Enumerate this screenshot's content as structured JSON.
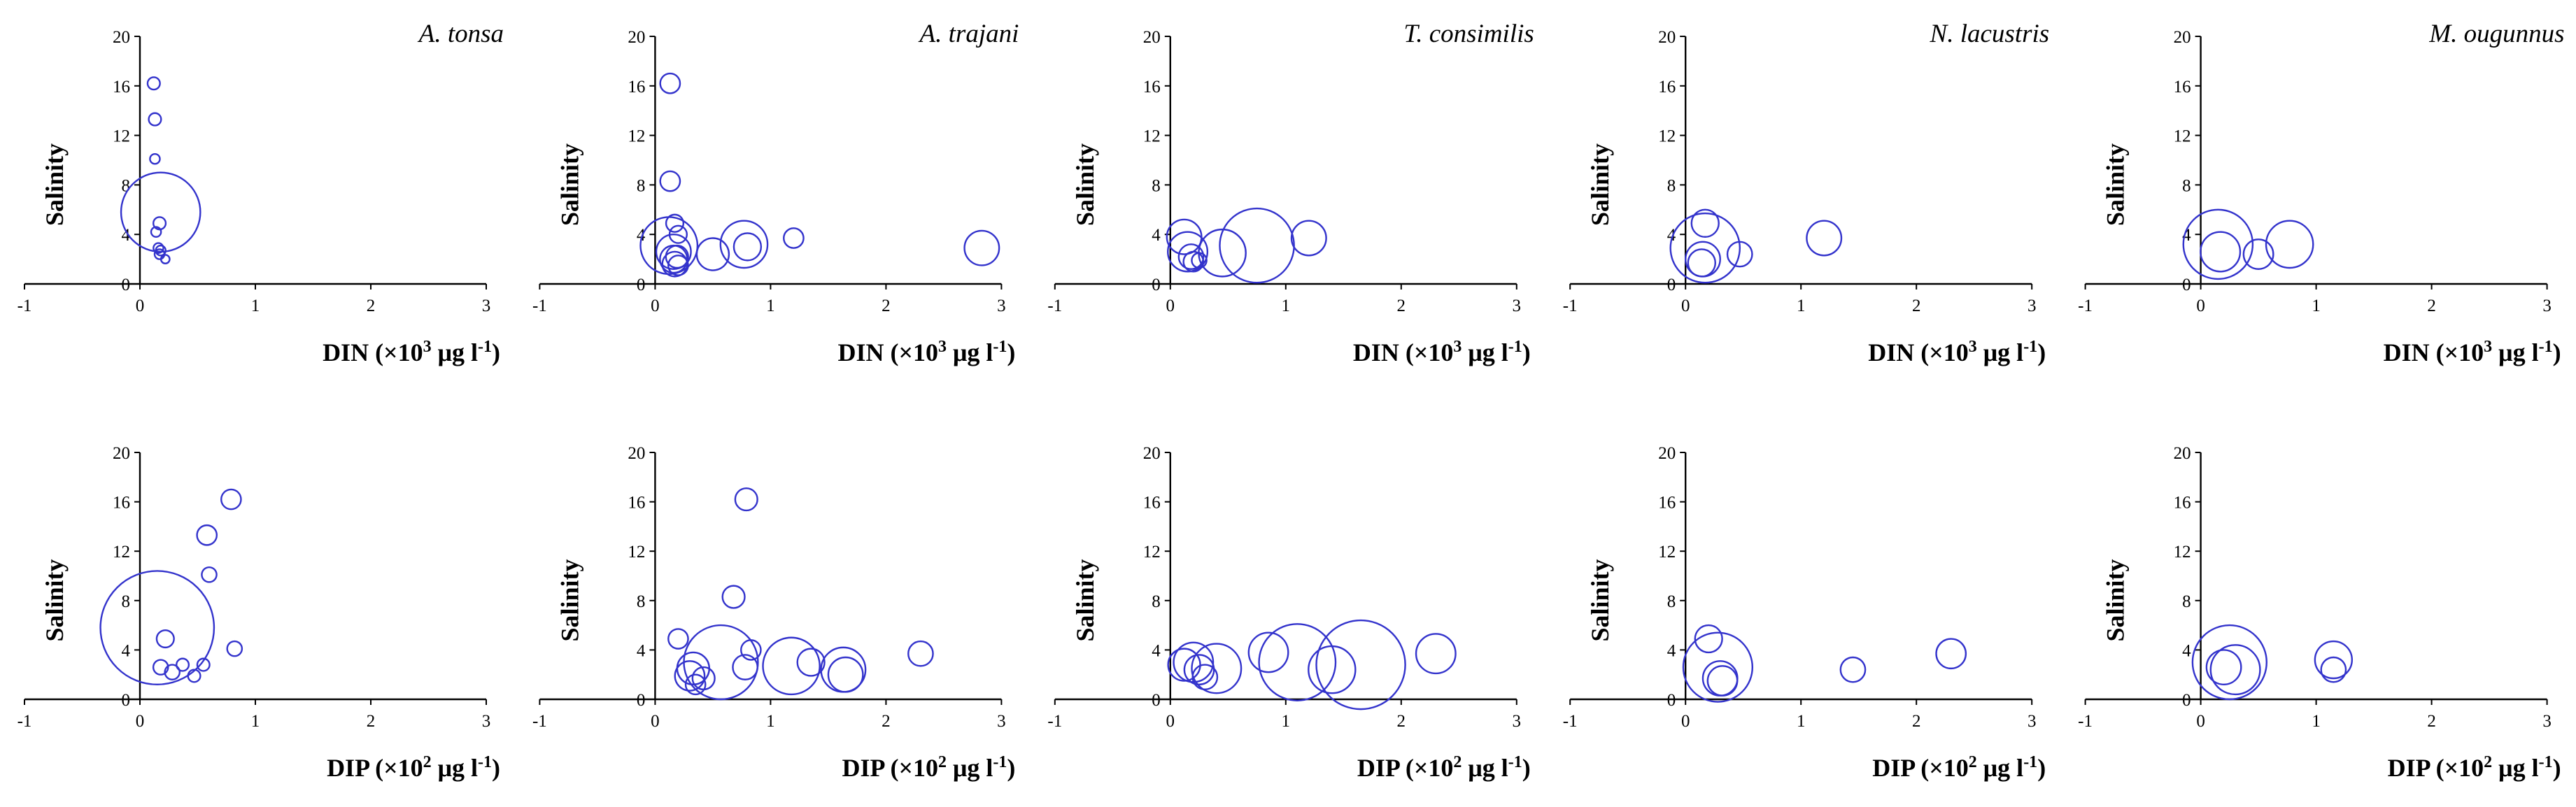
{
  "figure": {
    "marker_color": "#3333cc",
    "axis_color": "#000000"
  },
  "chart_data": [
    {
      "type": "scatter",
      "species": "A. tonsa",
      "xlabel": {
        "main": "DIN (×10",
        "sup": "3",
        "mid": " μg l",
        "sup2": "-1",
        "end": ")"
      },
      "ylabel": "Salinity",
      "xlim": [
        -1,
        3
      ],
      "ylim": [
        0,
        20
      ],
      "xticks": [
        "-1",
        "0",
        "1",
        "2",
        "3"
      ],
      "yticks": [
        "0",
        "4",
        "8",
        "12",
        "16",
        "20"
      ],
      "points": [
        {
          "x": 0.12,
          "y": 16.2,
          "r": 0.5
        },
        {
          "x": 0.13,
          "y": 13.3,
          "r": 0.5
        },
        {
          "x": 0.13,
          "y": 10.1,
          "r": 0.4
        },
        {
          "x": 0.17,
          "y": 4.9,
          "r": 0.5
        },
        {
          "x": 0.14,
          "y": 4.2,
          "r": 0.4
        },
        {
          "x": 0.18,
          "y": 5.8,
          "r": 3.2
        },
        {
          "x": 0.16,
          "y": 2.9,
          "r": 0.4
        },
        {
          "x": 0.18,
          "y": 2.7,
          "r": 0.4
        },
        {
          "x": 0.17,
          "y": 2.4,
          "r": 0.4
        },
        {
          "x": 0.22,
          "y": 2.0,
          "r": 0.35
        }
      ]
    },
    {
      "type": "scatter",
      "species": "A. trajani",
      "xlabel": {
        "main": "DIN (×10",
        "sup": "3",
        "mid": " μg l",
        "sup2": "-1",
        "end": ")"
      },
      "ylabel": "Salinity",
      "xlim": [
        -1,
        3
      ],
      "ylim": [
        0,
        20
      ],
      "xticks": [
        "-1",
        "0",
        "1",
        "2",
        "3"
      ],
      "yticks": [
        "0",
        "4",
        "8",
        "12",
        "16",
        "20"
      ],
      "points": [
        {
          "x": 0.13,
          "y": 16.2,
          "r": 0.8
        },
        {
          "x": 0.13,
          "y": 8.3,
          "r": 0.8
        },
        {
          "x": 0.17,
          "y": 4.9,
          "r": 0.7
        },
        {
          "x": 0.2,
          "y": 4.0,
          "r": 0.7
        },
        {
          "x": 0.12,
          "y": 3.1,
          "r": 2.3
        },
        {
          "x": 0.16,
          "y": 2.6,
          "r": 1.4
        },
        {
          "x": 0.16,
          "y": 2.0,
          "r": 1.1
        },
        {
          "x": 0.17,
          "y": 1.6,
          "r": 1.0
        },
        {
          "x": 0.19,
          "y": 2.2,
          "r": 0.9
        },
        {
          "x": 0.2,
          "y": 1.5,
          "r": 0.8
        },
        {
          "x": 0.5,
          "y": 2.4,
          "r": 1.3
        },
        {
          "x": 0.77,
          "y": 3.2,
          "r": 1.9
        },
        {
          "x": 0.8,
          "y": 3.0,
          "r": 1.1
        },
        {
          "x": 1.2,
          "y": 3.7,
          "r": 0.8
        },
        {
          "x": 2.83,
          "y": 2.9,
          "r": 1.4
        }
      ]
    },
    {
      "type": "scatter",
      "species": "T. consimilis",
      "xlabel": {
        "main": "DIN (×10",
        "sup": "3",
        "mid": " μg l",
        "sup2": "-1",
        "end": ")"
      },
      "ylabel": "Salinity",
      "xlim": [
        -1,
        3
      ],
      "ylim": [
        0,
        20
      ],
      "xticks": [
        "-1",
        "0",
        "1",
        "2",
        "3"
      ],
      "yticks": [
        "0",
        "4",
        "8",
        "12",
        "16",
        "20"
      ],
      "points": [
        {
          "x": 0.12,
          "y": 3.8,
          "r": 1.4
        },
        {
          "x": 0.15,
          "y": 2.6,
          "r": 1.6
        },
        {
          "x": 0.18,
          "y": 2.2,
          "r": 1.0
        },
        {
          "x": 0.2,
          "y": 1.8,
          "r": 0.8
        },
        {
          "x": 0.25,
          "y": 1.9,
          "r": 0.6
        },
        {
          "x": 0.45,
          "y": 2.5,
          "r": 1.9
        },
        {
          "x": 0.75,
          "y": 3.1,
          "r": 3.0
        },
        {
          "x": 1.2,
          "y": 3.7,
          "r": 1.4
        }
      ]
    },
    {
      "type": "scatter",
      "species": "N. lacustris",
      "xlabel": {
        "main": "DIN (×10",
        "sup": "3",
        "mid": " μg l",
        "sup2": "-1",
        "end": ")"
      },
      "ylabel": "Salinity",
      "xlim": [
        -1,
        3
      ],
      "ylim": [
        0,
        20
      ],
      "xticks": [
        "-1",
        "0",
        "1",
        "2",
        "3"
      ],
      "yticks": [
        "0",
        "4",
        "8",
        "12",
        "16",
        "20"
      ],
      "points": [
        {
          "x": 0.17,
          "y": 4.9,
          "r": 1.1
        },
        {
          "x": 0.17,
          "y": 2.9,
          "r": 2.8
        },
        {
          "x": 0.15,
          "y": 2.0,
          "r": 1.4
        },
        {
          "x": 0.14,
          "y": 1.7,
          "r": 1.1
        },
        {
          "x": 0.47,
          "y": 2.4,
          "r": 1.0
        },
        {
          "x": 1.2,
          "y": 3.7,
          "r": 1.4
        }
      ]
    },
    {
      "type": "scatter",
      "species": "M. ougunnus",
      "xlabel": {
        "main": "DIN (×10",
        "sup": "3",
        "mid": " μg l",
        "sup2": "-1",
        "end": ")"
      },
      "ylabel": "Salinity",
      "xlim": [
        -1,
        3
      ],
      "ylim": [
        0,
        20
      ],
      "xticks": [
        "-1",
        "0",
        "1",
        "2",
        "3"
      ],
      "yticks": [
        "0",
        "4",
        "8",
        "12",
        "16",
        "20"
      ],
      "points": [
        {
          "x": 0.15,
          "y": 3.2,
          "r": 2.8
        },
        {
          "x": 0.17,
          "y": 2.6,
          "r": 1.6
        },
        {
          "x": 0.5,
          "y": 2.4,
          "r": 1.2
        },
        {
          "x": 0.77,
          "y": 3.2,
          "r": 1.9
        }
      ]
    },
    {
      "type": "scatter",
      "species": "",
      "xlabel": {
        "main": "DIP (×10",
        "sup": "2",
        "mid": " μg l",
        "sup2": "-1",
        "end": ")"
      },
      "ylabel": "Salinity",
      "xlim": [
        -1,
        3
      ],
      "ylim": [
        0,
        20
      ],
      "xticks": [
        "-1",
        "0",
        "1",
        "2",
        "3"
      ],
      "yticks": [
        "0",
        "4",
        "8",
        "12",
        "16",
        "20"
      ],
      "points": [
        {
          "x": 0.79,
          "y": 16.2,
          "r": 0.8
        },
        {
          "x": 0.58,
          "y": 13.3,
          "r": 0.8
        },
        {
          "x": 0.6,
          "y": 10.1,
          "r": 0.6
        },
        {
          "x": 0.82,
          "y": 4.1,
          "r": 0.6
        },
        {
          "x": 0.22,
          "y": 4.9,
          "r": 0.7
        },
        {
          "x": 0.15,
          "y": 5.8,
          "r": 4.6
        },
        {
          "x": 0.18,
          "y": 2.6,
          "r": 0.6
        },
        {
          "x": 0.28,
          "y": 2.2,
          "r": 0.6
        },
        {
          "x": 0.37,
          "y": 2.8,
          "r": 0.5
        },
        {
          "x": 0.47,
          "y": 1.9,
          "r": 0.5
        },
        {
          "x": 0.55,
          "y": 2.8,
          "r": 0.5
        }
      ]
    },
    {
      "type": "scatter",
      "species": "",
      "xlabel": {
        "main": "DIP (×10",
        "sup": "2",
        "mid": " μg l",
        "sup2": "-1",
        "end": ")"
      },
      "ylabel": "Salinity",
      "xlim": [
        -1,
        3
      ],
      "ylim": [
        0,
        20
      ],
      "xticks": [
        "-1",
        "0",
        "1",
        "2",
        "3"
      ],
      "yticks": [
        "0",
        "4",
        "8",
        "12",
        "16",
        "20"
      ],
      "points": [
        {
          "x": 0.79,
          "y": 16.2,
          "r": 0.9
        },
        {
          "x": 0.68,
          "y": 8.3,
          "r": 0.9
        },
        {
          "x": 0.2,
          "y": 4.9,
          "r": 0.8
        },
        {
          "x": 0.83,
          "y": 4.0,
          "r": 0.8
        },
        {
          "x": 0.33,
          "y": 2.5,
          "r": 1.3
        },
        {
          "x": 0.3,
          "y": 1.9,
          "r": 1.2
        },
        {
          "x": 0.42,
          "y": 1.7,
          "r": 0.9
        },
        {
          "x": 0.35,
          "y": 1.2,
          "r": 0.8
        },
        {
          "x": 0.57,
          "y": 3.0,
          "r": 3.0
        },
        {
          "x": 0.78,
          "y": 2.6,
          "r": 1.0
        },
        {
          "x": 1.18,
          "y": 2.7,
          "r": 2.3
        },
        {
          "x": 1.35,
          "y": 3.0,
          "r": 1.1
        },
        {
          "x": 1.63,
          "y": 2.4,
          "r": 1.8
        },
        {
          "x": 1.65,
          "y": 2.0,
          "r": 1.4
        },
        {
          "x": 2.3,
          "y": 3.7,
          "r": 1.0
        }
      ]
    },
    {
      "type": "scatter",
      "species": "",
      "xlabel": {
        "main": "DIP (×10",
        "sup": "2",
        "mid": " μg l",
        "sup2": "-1",
        "end": ")"
      },
      "ylabel": "Salinity",
      "xlim": [
        -1,
        3
      ],
      "ylim": [
        0,
        20
      ],
      "xticks": [
        "-1",
        "0",
        "1",
        "2",
        "3"
      ],
      "yticks": [
        "0",
        "4",
        "8",
        "12",
        "16",
        "20"
      ],
      "points": [
        {
          "x": 0.12,
          "y": 2.8,
          "r": 1.3
        },
        {
          "x": 0.2,
          "y": 3.0,
          "r": 1.6
        },
        {
          "x": 0.25,
          "y": 2.4,
          "r": 1.2
        },
        {
          "x": 0.3,
          "y": 1.8,
          "r": 1.0
        },
        {
          "x": 0.4,
          "y": 2.5,
          "r": 2.0
        },
        {
          "x": 0.85,
          "y": 3.8,
          "r": 1.6
        },
        {
          "x": 1.1,
          "y": 3.0,
          "r": 3.1
        },
        {
          "x": 1.4,
          "y": 2.4,
          "r": 1.9
        },
        {
          "x": 1.65,
          "y": 2.8,
          "r": 3.6
        },
        {
          "x": 2.3,
          "y": 3.7,
          "r": 1.6
        }
      ]
    },
    {
      "type": "scatter",
      "species": "",
      "xlabel": {
        "main": "DIP (×10",
        "sup": "2",
        "mid": " μg l",
        "sup2": "-1",
        "end": ")"
      },
      "ylabel": "Salinity",
      "xlim": [
        -1,
        3
      ],
      "ylim": [
        0,
        20
      ],
      "xticks": [
        "-1",
        "0",
        "1",
        "2",
        "3"
      ],
      "yticks": [
        "0",
        "4",
        "8",
        "12",
        "16",
        "20"
      ],
      "points": [
        {
          "x": 0.2,
          "y": 4.9,
          "r": 1.1
        },
        {
          "x": 0.28,
          "y": 2.6,
          "r": 2.8
        },
        {
          "x": 0.3,
          "y": 1.7,
          "r": 1.4
        },
        {
          "x": 0.32,
          "y": 1.5,
          "r": 1.2
        },
        {
          "x": 1.45,
          "y": 2.4,
          "r": 1.0
        },
        {
          "x": 2.3,
          "y": 3.7,
          "r": 1.2
        }
      ]
    },
    {
      "type": "scatter",
      "species": "",
      "xlabel": {
        "main": "DIP (×10",
        "sup": "2",
        "mid": " μg l",
        "sup2": "-1",
        "end": ")"
      },
      "ylabel": "Salinity",
      "xlim": [
        -1,
        3
      ],
      "ylim": [
        0,
        20
      ],
      "xticks": [
        "-1",
        "0",
        "1",
        "2",
        "3"
      ],
      "yticks": [
        "0",
        "4",
        "8",
        "12",
        "16",
        "20"
      ],
      "points": [
        {
          "x": 0.25,
          "y": 3.0,
          "r": 3.0
        },
        {
          "x": 0.3,
          "y": 2.4,
          "r": 2.0
        },
        {
          "x": 0.2,
          "y": 2.6,
          "r": 1.4
        },
        {
          "x": 1.15,
          "y": 3.2,
          "r": 1.5
        },
        {
          "x": 1.15,
          "y": 2.4,
          "r": 1.0
        }
      ]
    }
  ]
}
